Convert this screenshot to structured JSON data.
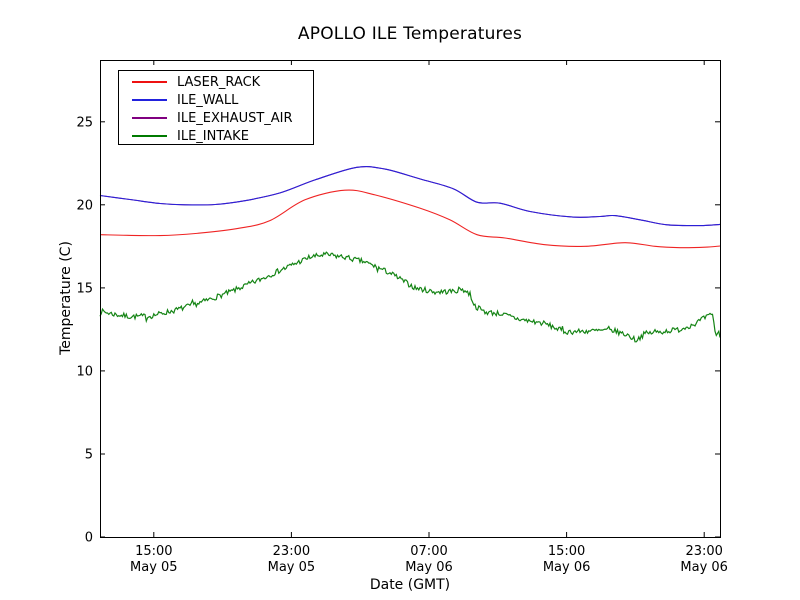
{
  "chart_data": {
    "type": "line",
    "title": "APOLLO ILE Temperatures",
    "xlabel": "Date (GMT)",
    "ylabel": "Temperature (C)",
    "grid": false,
    "legend_position": "upper left",
    "frame_color": "#000000",
    "x_unit": "hours since May 05 00:00 GMT",
    "xlim": [
      11.87,
      47.92
    ],
    "ylim": [
      0,
      28.72
    ],
    "yticks": [
      0,
      5,
      10,
      15,
      20,
      25
    ],
    "xticks": [
      {
        "t": 15,
        "time": "15:00",
        "date": "May 05"
      },
      {
        "t": 23,
        "time": "23:00",
        "date": "May 05"
      },
      {
        "t": 31,
        "time": "07:00",
        "date": "May 06"
      },
      {
        "t": 39,
        "time": "15:00",
        "date": "May 06"
      },
      {
        "t": 47,
        "time": "23:00",
        "date": "May 06"
      }
    ],
    "draw_order": [
      "ILE_EXHAUST_AIR",
      "ILE_WALL",
      "LASER_RACK",
      "ILE_INTAKE"
    ],
    "series": [
      {
        "name": "LASER_RACK",
        "color": "#ee1111",
        "style": "smooth",
        "points": [
          [
            11.87,
            18.2
          ],
          [
            15.36,
            18.15
          ],
          [
            17.68,
            18.3
          ],
          [
            20.01,
            18.6
          ],
          [
            21.75,
            19.05
          ],
          [
            23.79,
            20.3
          ],
          [
            26.11,
            20.88
          ],
          [
            27.86,
            20.6
          ],
          [
            30.47,
            19.8
          ],
          [
            32.21,
            19.1
          ],
          [
            33.79,
            18.2
          ],
          [
            35.42,
            18.0
          ],
          [
            37.74,
            17.6
          ],
          [
            40.07,
            17.5
          ],
          [
            42.4,
            17.72
          ],
          [
            44.14,
            17.5
          ],
          [
            45.6,
            17.42
          ],
          [
            47.05,
            17.45
          ],
          [
            47.92,
            17.52
          ]
        ]
      },
      {
        "name": "ILE_WALL",
        "color": "#2222dd",
        "style": "smooth",
        "points": [
          [
            11.87,
            20.56
          ],
          [
            13.61,
            20.32
          ],
          [
            15.36,
            20.08
          ],
          [
            16.81,
            20.0
          ],
          [
            18.56,
            20.02
          ],
          [
            20.3,
            20.25
          ],
          [
            22.34,
            20.72
          ],
          [
            24.37,
            21.5
          ],
          [
            26.81,
            22.26
          ],
          [
            28.44,
            22.15
          ],
          [
            30.47,
            21.56
          ],
          [
            32.39,
            20.98
          ],
          [
            33.79,
            20.16
          ],
          [
            35.13,
            20.1
          ],
          [
            36.87,
            19.6
          ],
          [
            39.37,
            19.26
          ],
          [
            40.94,
            19.3
          ],
          [
            41.81,
            19.35
          ],
          [
            43.27,
            19.1
          ],
          [
            44.84,
            18.8
          ],
          [
            46.76,
            18.75
          ],
          [
            47.92,
            18.82
          ]
        ]
      },
      {
        "name": "ILE_EXHAUST_AIR",
        "color": "#800080",
        "style": "smooth",
        "visibility_note": "coincides with ILE_WALL, hidden beneath it",
        "points": [
          [
            11.87,
            20.56
          ],
          [
            13.61,
            20.32
          ],
          [
            15.36,
            20.08
          ],
          [
            16.81,
            20.0
          ],
          [
            18.56,
            20.02
          ],
          [
            20.3,
            20.25
          ],
          [
            22.34,
            20.72
          ],
          [
            24.37,
            21.5
          ],
          [
            26.81,
            22.26
          ],
          [
            28.44,
            22.15
          ],
          [
            30.47,
            21.56
          ],
          [
            32.39,
            20.98
          ],
          [
            33.79,
            20.16
          ],
          [
            35.13,
            20.1
          ],
          [
            36.87,
            19.6
          ],
          [
            39.37,
            19.26
          ],
          [
            40.94,
            19.3
          ],
          [
            41.81,
            19.35
          ],
          [
            43.27,
            19.1
          ],
          [
            44.84,
            18.8
          ],
          [
            46.76,
            18.75
          ],
          [
            47.92,
            18.82
          ]
        ]
      },
      {
        "name": "ILE_INTAKE",
        "color": "#007a00",
        "style": "noisy",
        "noise_amplitude_c": 0.16,
        "points": [
          [
            11.87,
            13.6
          ],
          [
            12.74,
            13.4
          ],
          [
            13.61,
            13.27
          ],
          [
            14.78,
            13.3
          ],
          [
            16.23,
            13.65
          ],
          [
            17.68,
            14.1
          ],
          [
            19.43,
            14.75
          ],
          [
            21.17,
            15.5
          ],
          [
            22.63,
            16.2
          ],
          [
            24.08,
            16.85
          ],
          [
            24.95,
            17.0
          ],
          [
            26.11,
            16.85
          ],
          [
            27.28,
            16.55
          ],
          [
            28.73,
            15.9
          ],
          [
            30.18,
            15.0
          ],
          [
            31.34,
            14.75
          ],
          [
            32.51,
            14.8
          ],
          [
            32.92,
            14.95
          ],
          [
            33.38,
            14.6
          ],
          [
            33.67,
            13.9
          ],
          [
            34.26,
            13.55
          ],
          [
            35.13,
            13.45
          ],
          [
            36.29,
            13.1
          ],
          [
            37.74,
            12.85
          ],
          [
            38.9,
            12.35
          ],
          [
            40.36,
            12.4
          ],
          [
            41.64,
            12.45
          ],
          [
            42.57,
            12.15
          ],
          [
            43.03,
            11.85
          ],
          [
            43.56,
            12.25
          ],
          [
            44.43,
            12.35
          ],
          [
            45.6,
            12.5
          ],
          [
            46.47,
            12.85
          ],
          [
            47.22,
            13.3
          ],
          [
            47.51,
            13.35
          ],
          [
            47.69,
            12.0
          ],
          [
            47.8,
            12.4
          ],
          [
            47.92,
            12.15
          ]
        ]
      }
    ]
  }
}
